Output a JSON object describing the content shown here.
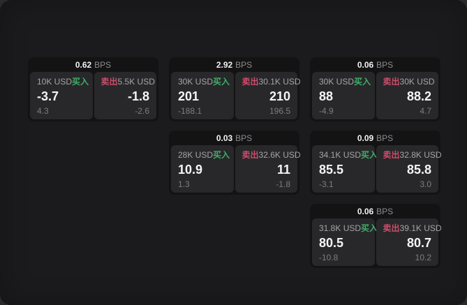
{
  "labels": {
    "unit": "BPS",
    "buy": "买入",
    "sell": "卖出"
  },
  "colors": {
    "buy": "#3EAE68",
    "sell": "#CE4D6B",
    "panel_bg": "#1B1B1D",
    "card_bg": "#131314",
    "cell_bg": "#28282A"
  },
  "cards": [
    {
      "row": 1,
      "col": 1,
      "bps": "0.62",
      "buy": {
        "amount": "10K USD",
        "value": "-3.7",
        "change": "4.3"
      },
      "sell": {
        "amount": "5.5K USD",
        "value": "-1.8",
        "change": "-2.6"
      }
    },
    {
      "row": 1,
      "col": 2,
      "bps": "2.92",
      "buy": {
        "amount": "30K USD",
        "value": "201",
        "change": "-188.1"
      },
      "sell": {
        "amount": "30.1K USD",
        "value": "210",
        "change": "196.5"
      }
    },
    {
      "row": 1,
      "col": 3,
      "bps": "0.06",
      "buy": {
        "amount": "30K USD",
        "value": "88",
        "change": "-4.9"
      },
      "sell": {
        "amount": "30K USD",
        "value": "88.2",
        "change": "4.7"
      }
    },
    {
      "row": 2,
      "col": 2,
      "bps": "0.03",
      "buy": {
        "amount": "28K USD",
        "value": "10.9",
        "change": "1.3"
      },
      "sell": {
        "amount": "32.6K USD",
        "value": "11",
        "change": "-1.8"
      }
    },
    {
      "row": 2,
      "col": 3,
      "bps": "0.09",
      "buy": {
        "amount": "34.1K USD",
        "value": "85.5",
        "change": "-3.1"
      },
      "sell": {
        "amount": "32.8K USD",
        "value": "85.8",
        "change": "3.0"
      }
    },
    {
      "row": 3,
      "col": 3,
      "bps": "0.06",
      "buy": {
        "amount": "31.8K USD",
        "value": "80.5",
        "change": "-10.8"
      },
      "sell": {
        "amount": "39.1K USD",
        "value": "80.7",
        "change": "10.2"
      }
    }
  ]
}
